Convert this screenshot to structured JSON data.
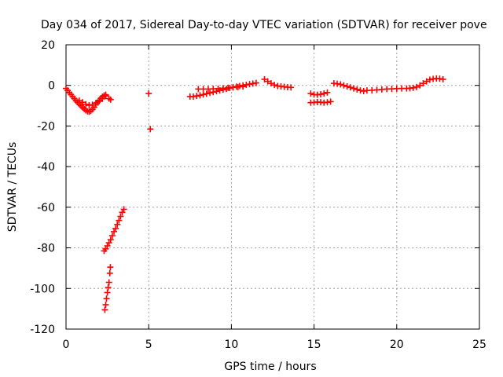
{
  "chart_data": {
    "type": "scatter",
    "title": "Day 034 of 2017, Sidereal Day-to-day VTEC variation (SDTVAR) for receiver pove",
    "xlabel": "GPS time / hours",
    "ylabel": "SDTVAR / TECUs",
    "xlim": [
      0,
      25
    ],
    "ylim": [
      -120,
      20
    ],
    "xticks": [
      0,
      5,
      10,
      15,
      20,
      25
    ],
    "yticks": [
      -120,
      -100,
      -80,
      -60,
      -40,
      -20,
      0,
      20
    ],
    "xtick_labels": [
      "0",
      "5",
      "10",
      "15",
      "20",
      "25"
    ],
    "ytick_labels": [
      "-120",
      "-100",
      "-80",
      "-60",
      "-40",
      "-20",
      "0",
      "20"
    ],
    "grid": true,
    "marker": "+",
    "color": "#ff0000",
    "series": [
      {
        "name": "SDTVAR",
        "points": [
          [
            0.0,
            -1.5
          ],
          [
            0.1,
            -2.5
          ],
          [
            0.2,
            -3.5
          ],
          [
            0.3,
            -4.5
          ],
          [
            0.4,
            -5.5
          ],
          [
            0.5,
            -6.5
          ],
          [
            0.6,
            -7.5
          ],
          [
            0.7,
            -8.3
          ],
          [
            0.8,
            -9.2
          ],
          [
            0.9,
            -10.0
          ],
          [
            1.0,
            -10.8
          ],
          [
            1.1,
            -11.6
          ],
          [
            1.2,
            -12.3
          ],
          [
            1.3,
            -12.8
          ],
          [
            1.4,
            -13.0
          ],
          [
            1.5,
            -12.6
          ],
          [
            1.6,
            -11.8
          ],
          [
            1.7,
            -10.8
          ],
          [
            1.8,
            -9.6
          ],
          [
            1.9,
            -8.4
          ],
          [
            2.0,
            -7.4
          ],
          [
            2.1,
            -6.4
          ],
          [
            2.2,
            -5.6
          ],
          [
            2.3,
            -5.0
          ],
          [
            2.4,
            -4.6
          ],
          [
            0.8,
            -7.5
          ],
          [
            1.0,
            -8.3
          ],
          [
            1.2,
            -9.3
          ],
          [
            1.4,
            -9.8
          ],
          [
            1.6,
            -9.5
          ],
          [
            1.8,
            -8.7
          ],
          [
            2.0,
            -7.8
          ],
          [
            2.2,
            -6.6
          ],
          [
            2.4,
            -5.2
          ],
          [
            2.6,
            -6.5
          ],
          [
            2.7,
            -7.0
          ],
          [
            2.3,
            -81.5
          ],
          [
            2.4,
            -80.5
          ],
          [
            2.5,
            -79.0
          ],
          [
            2.6,
            -77.5
          ],
          [
            2.7,
            -76.0
          ],
          [
            2.8,
            -74.0
          ],
          [
            2.9,
            -72.0
          ],
          [
            3.0,
            -70.5
          ],
          [
            3.1,
            -68.5
          ],
          [
            3.2,
            -66.5
          ],
          [
            3.3,
            -64.5
          ],
          [
            3.4,
            -62.5
          ],
          [
            3.5,
            -61.0
          ],
          [
            2.35,
            -110.5
          ],
          [
            2.4,
            -108.0
          ],
          [
            2.45,
            -105.0
          ],
          [
            2.5,
            -102.0
          ],
          [
            2.55,
            -99.5
          ],
          [
            2.6,
            -97.0
          ],
          [
            2.65,
            -92.5
          ],
          [
            2.68,
            -89.5
          ],
          [
            5.0,
            -4.0
          ],
          [
            5.1,
            -21.5
          ],
          [
            7.5,
            -5.5
          ],
          [
            7.7,
            -5.5
          ],
          [
            7.9,
            -5.2
          ],
          [
            8.1,
            -4.9
          ],
          [
            8.3,
            -4.5
          ],
          [
            8.5,
            -4.1
          ],
          [
            8.7,
            -3.7
          ],
          [
            8.9,
            -3.3
          ],
          [
            9.1,
            -2.9
          ],
          [
            9.3,
            -2.5
          ],
          [
            9.5,
            -2.1
          ],
          [
            9.7,
            -1.7
          ],
          [
            9.9,
            -1.3
          ],
          [
            10.1,
            -0.9
          ],
          [
            10.3,
            -0.6
          ],
          [
            10.5,
            -0.3
          ],
          [
            10.7,
            0.0
          ],
          [
            10.9,
            0.3
          ],
          [
            11.1,
            0.6
          ],
          [
            11.3,
            0.9
          ],
          [
            11.5,
            1.2
          ],
          [
            8.0,
            -1.8
          ],
          [
            8.3,
            -1.8
          ],
          [
            8.6,
            -1.8
          ],
          [
            8.9,
            -1.7
          ],
          [
            9.2,
            -1.6
          ],
          [
            9.5,
            -1.4
          ],
          [
            9.8,
            -1.2
          ],
          [
            10.1,
            -1.0
          ],
          [
            10.4,
            -0.8
          ],
          [
            10.7,
            -0.6
          ],
          [
            12.0,
            3.0
          ],
          [
            12.2,
            2.0
          ],
          [
            12.4,
            1.0
          ],
          [
            12.6,
            0.2
          ],
          [
            12.8,
            -0.3
          ],
          [
            13.0,
            -0.5
          ],
          [
            13.2,
            -0.7
          ],
          [
            13.4,
            -0.9
          ],
          [
            13.6,
            -1.0
          ],
          [
            14.8,
            -4.0
          ],
          [
            15.0,
            -4.5
          ],
          [
            15.2,
            -4.6
          ],
          [
            15.4,
            -4.4
          ],
          [
            15.6,
            -4.0
          ],
          [
            15.8,
            -3.5
          ],
          [
            14.8,
            -8.5
          ],
          [
            15.0,
            -8.4
          ],
          [
            15.2,
            -8.2
          ],
          [
            15.4,
            -8.3
          ],
          [
            15.6,
            -8.5
          ],
          [
            15.8,
            -8.3
          ],
          [
            16.0,
            -8.0
          ],
          [
            16.2,
            1.0
          ],
          [
            16.4,
            0.8
          ],
          [
            16.6,
            0.5
          ],
          [
            16.8,
            0.0
          ],
          [
            17.0,
            -0.5
          ],
          [
            17.2,
            -1.0
          ],
          [
            17.4,
            -1.5
          ],
          [
            17.6,
            -2.0
          ],
          [
            17.8,
            -2.5
          ],
          [
            18.0,
            -2.8
          ],
          [
            18.2,
            -2.5
          ],
          [
            18.5,
            -2.4
          ],
          [
            18.8,
            -2.2
          ],
          [
            19.1,
            -2.0
          ],
          [
            19.4,
            -1.8
          ],
          [
            19.7,
            -1.7
          ],
          [
            20.0,
            -1.6
          ],
          [
            20.3,
            -1.5
          ],
          [
            20.6,
            -1.5
          ],
          [
            20.8,
            -1.4
          ],
          [
            21.0,
            -1.2
          ],
          [
            21.2,
            -0.8
          ],
          [
            21.4,
            0.0
          ],
          [
            21.6,
            1.0
          ],
          [
            21.8,
            2.0
          ],
          [
            22.0,
            2.8
          ],
          [
            22.2,
            3.2
          ],
          [
            22.4,
            3.4
          ],
          [
            22.6,
            3.3
          ],
          [
            22.8,
            3.0
          ]
        ]
      }
    ]
  }
}
